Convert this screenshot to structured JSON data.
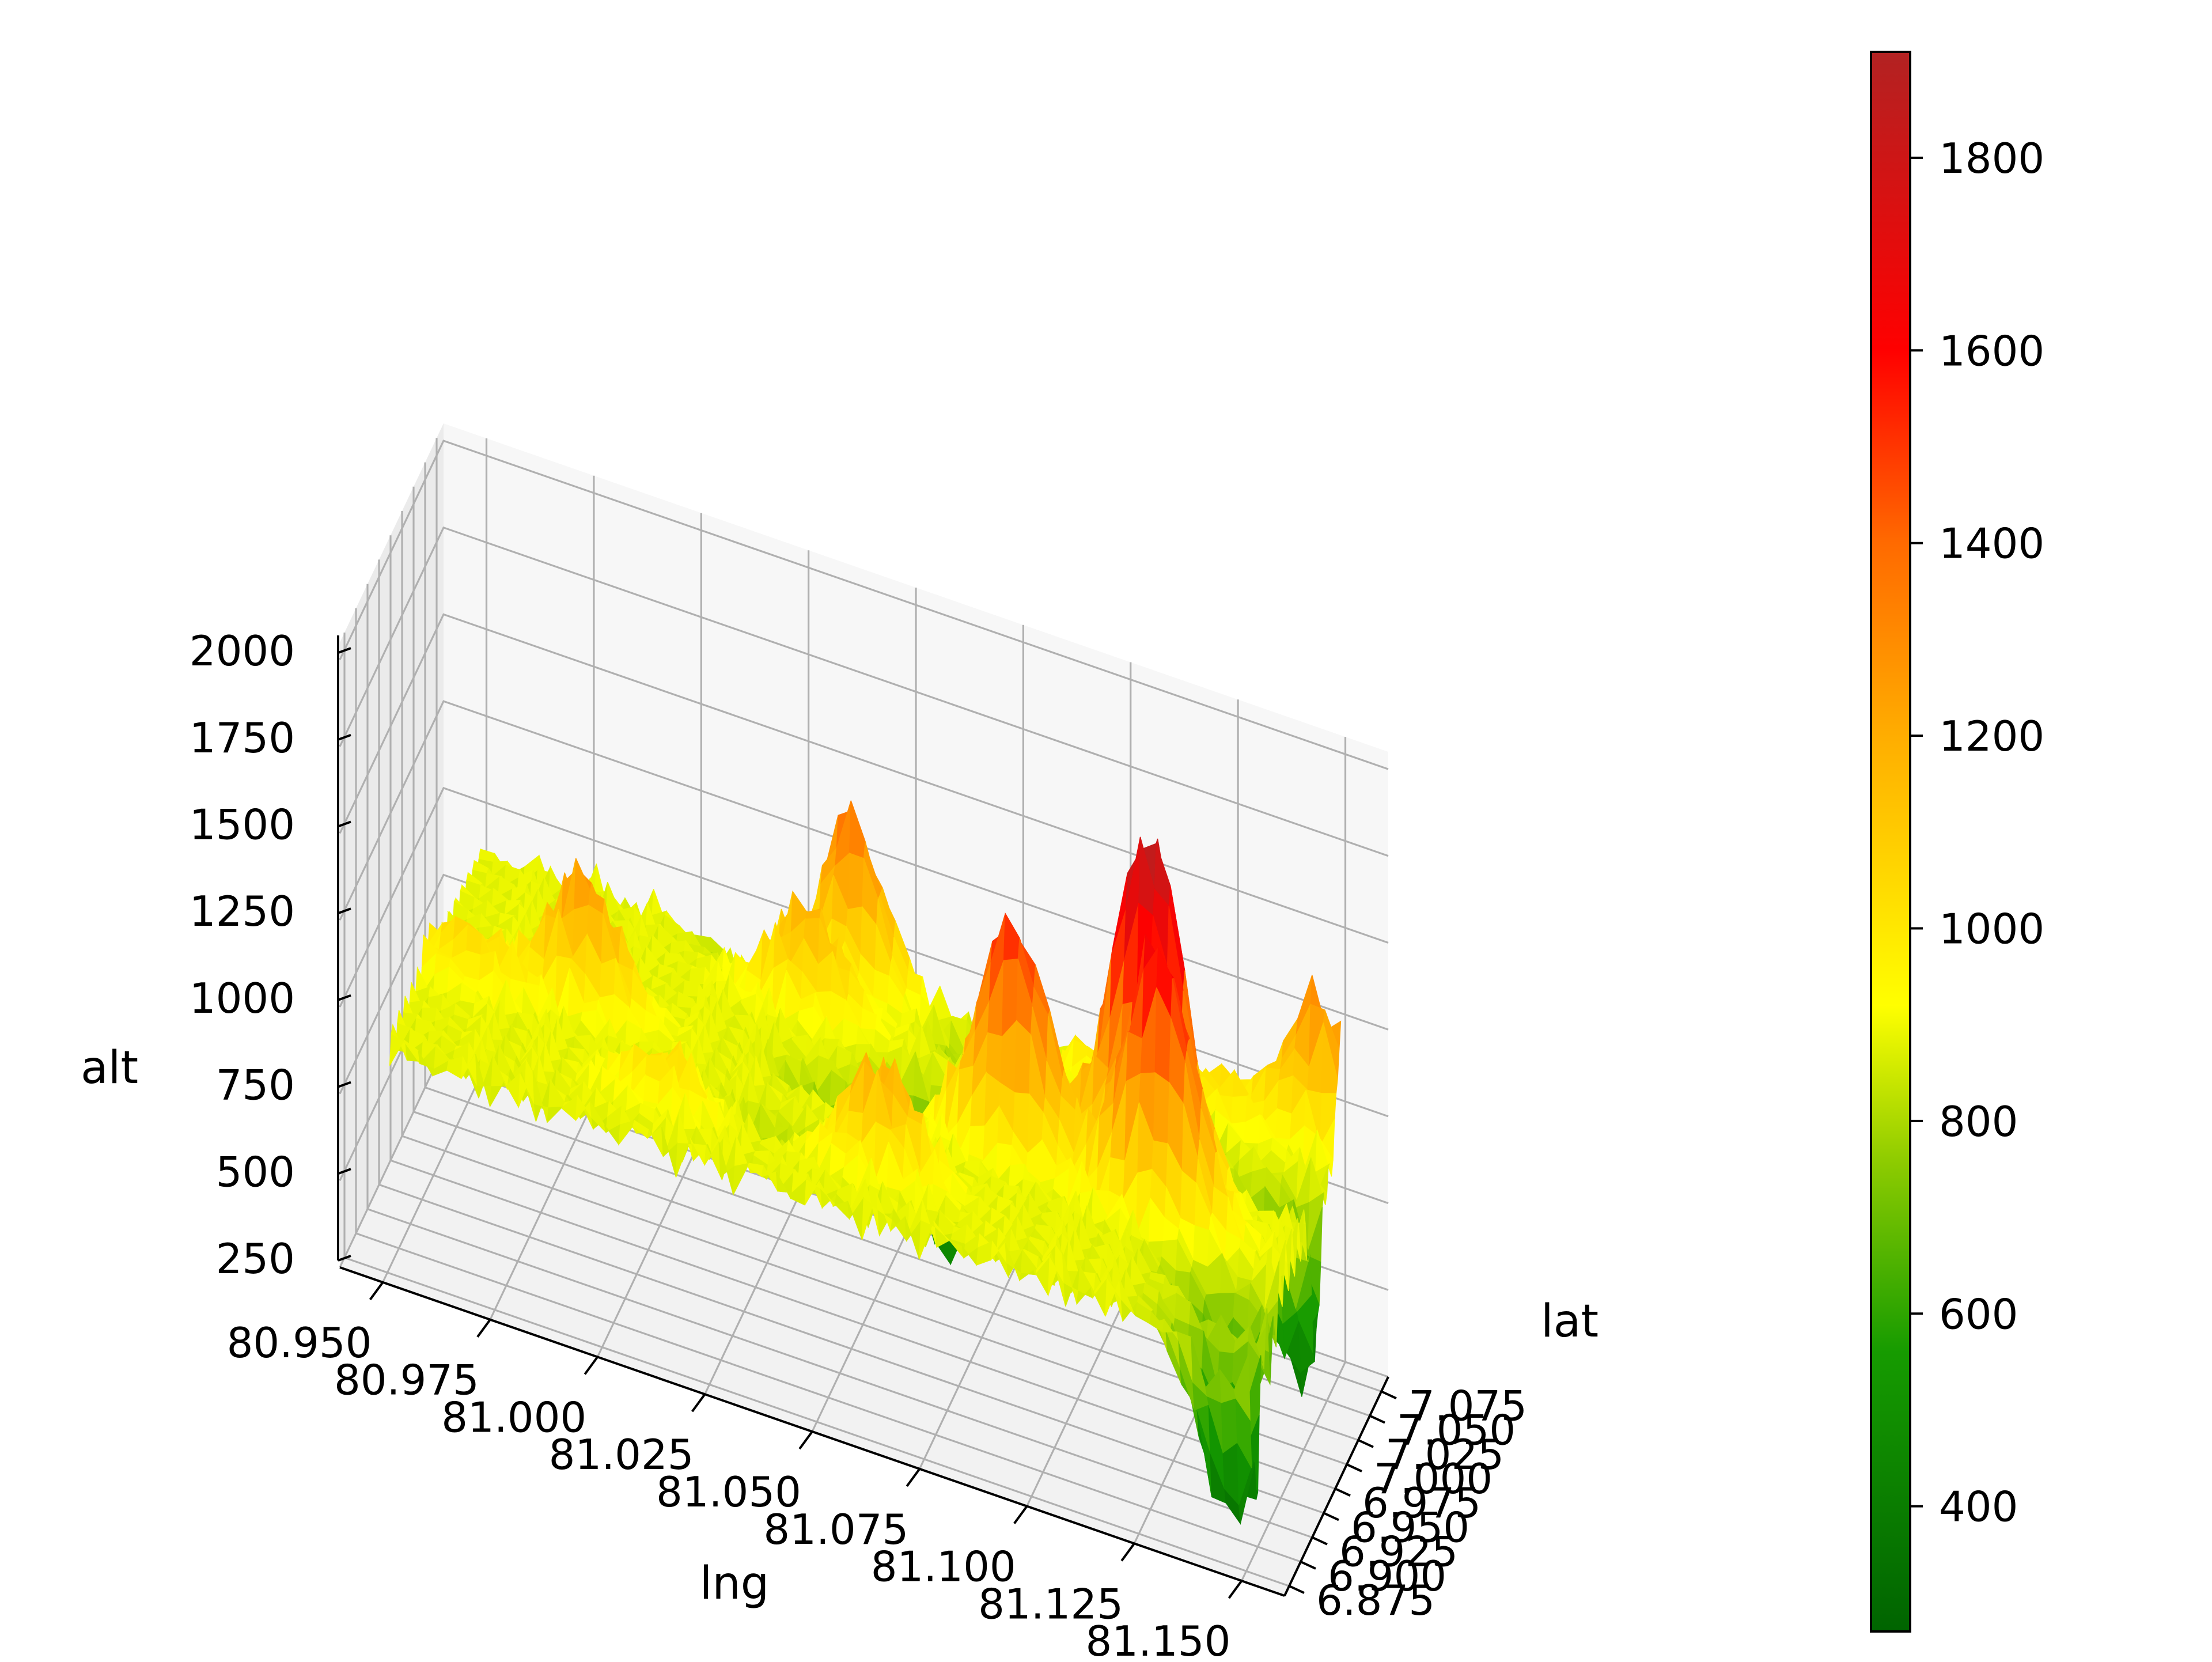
{
  "chart_data": {
    "type": "surface3d",
    "title": "",
    "xlabel": "lng",
    "ylabel": "lat",
    "zlabel": "alt",
    "xlim": [
      80.94,
      81.16
    ],
    "ylim": [
      6.865,
      7.09
    ],
    "zlim": [
      250,
      2050
    ],
    "x_ticks": [
      "80.950",
      "80.975",
      "81.000",
      "81.025",
      "81.050",
      "81.075",
      "81.100",
      "81.125",
      "81.150"
    ],
    "y_ticks": [
      "6.875",
      "6.900",
      "6.925",
      "6.950",
      "6.975",
      "7.000",
      "7.025",
      "7.050",
      "7.075"
    ],
    "z_ticks": [
      "250",
      "500",
      "750",
      "1000",
      "1250",
      "1500",
      "1750",
      "2000"
    ],
    "grid": true,
    "colorbar": {
      "range": [
        270,
        1910
      ],
      "ticks": [
        "400",
        "600",
        "800",
        "1000",
        "1200",
        "1400",
        "1600",
        "1800"
      ],
      "colormap": [
        {
          "value": 270,
          "color": "#006400"
        },
        {
          "value": 560,
          "color": "#169b00"
        },
        {
          "value": 760,
          "color": "#8fcc00"
        },
        {
          "value": 920,
          "color": "#ffff00"
        },
        {
          "value": 1200,
          "color": "#ffad00"
        },
        {
          "value": 1400,
          "color": "#ff6a00"
        },
        {
          "value": 1600,
          "color": "#ff0000"
        },
        {
          "value": 1910,
          "color": "#b22222"
        }
      ]
    },
    "surface_peaks": [
      {
        "lng": 81.035,
        "lat": 7.075,
        "alt": 1430
      },
      {
        "lng": 81.085,
        "lat": 6.975,
        "alt": 1560
      },
      {
        "lng": 81.115,
        "lat": 6.99,
        "alt": 1900
      },
      {
        "lng": 81.12,
        "lat": 6.965,
        "alt": 1650
      },
      {
        "lng": 81.06,
        "lat": 6.92,
        "alt": 1200
      },
      {
        "lng": 80.985,
        "lat": 6.975,
        "alt": 1260
      },
      {
        "lng": 80.96,
        "lat": 6.96,
        "alt": 1050
      },
      {
        "lng": 81.03,
        "lat": 7.04,
        "alt": 1180
      },
      {
        "lng": 81.09,
        "lat": 7.06,
        "alt": 1050
      },
      {
        "lng": 81.145,
        "lat": 7.08,
        "alt": 1300
      },
      {
        "lng": 81.12,
        "lat": 7.065,
        "alt": 1050
      },
      {
        "lng": 81.01,
        "lat": 6.915,
        "alt": 1030
      }
    ],
    "surface_valleys": [
      {
        "lng": 81.145,
        "lat": 6.895,
        "alt": 330
      },
      {
        "lng": 81.145,
        "lat": 7.025,
        "alt": 380
      },
      {
        "lng": 81.065,
        "lat": 7.01,
        "alt": 430
      },
      {
        "lng": 81.075,
        "lat": 7.06,
        "alt": 580
      },
      {
        "lng": 81.11,
        "lat": 7.05,
        "alt": 600
      },
      {
        "lng": 81.02,
        "lat": 7.075,
        "alt": 600
      },
      {
        "lng": 81.045,
        "lat": 6.985,
        "alt": 640
      },
      {
        "lng": 81.035,
        "lat": 6.93,
        "alt": 800
      },
      {
        "lng": 81.14,
        "lat": 6.93,
        "alt": 560
      }
    ],
    "surface_base_alt": 880
  }
}
